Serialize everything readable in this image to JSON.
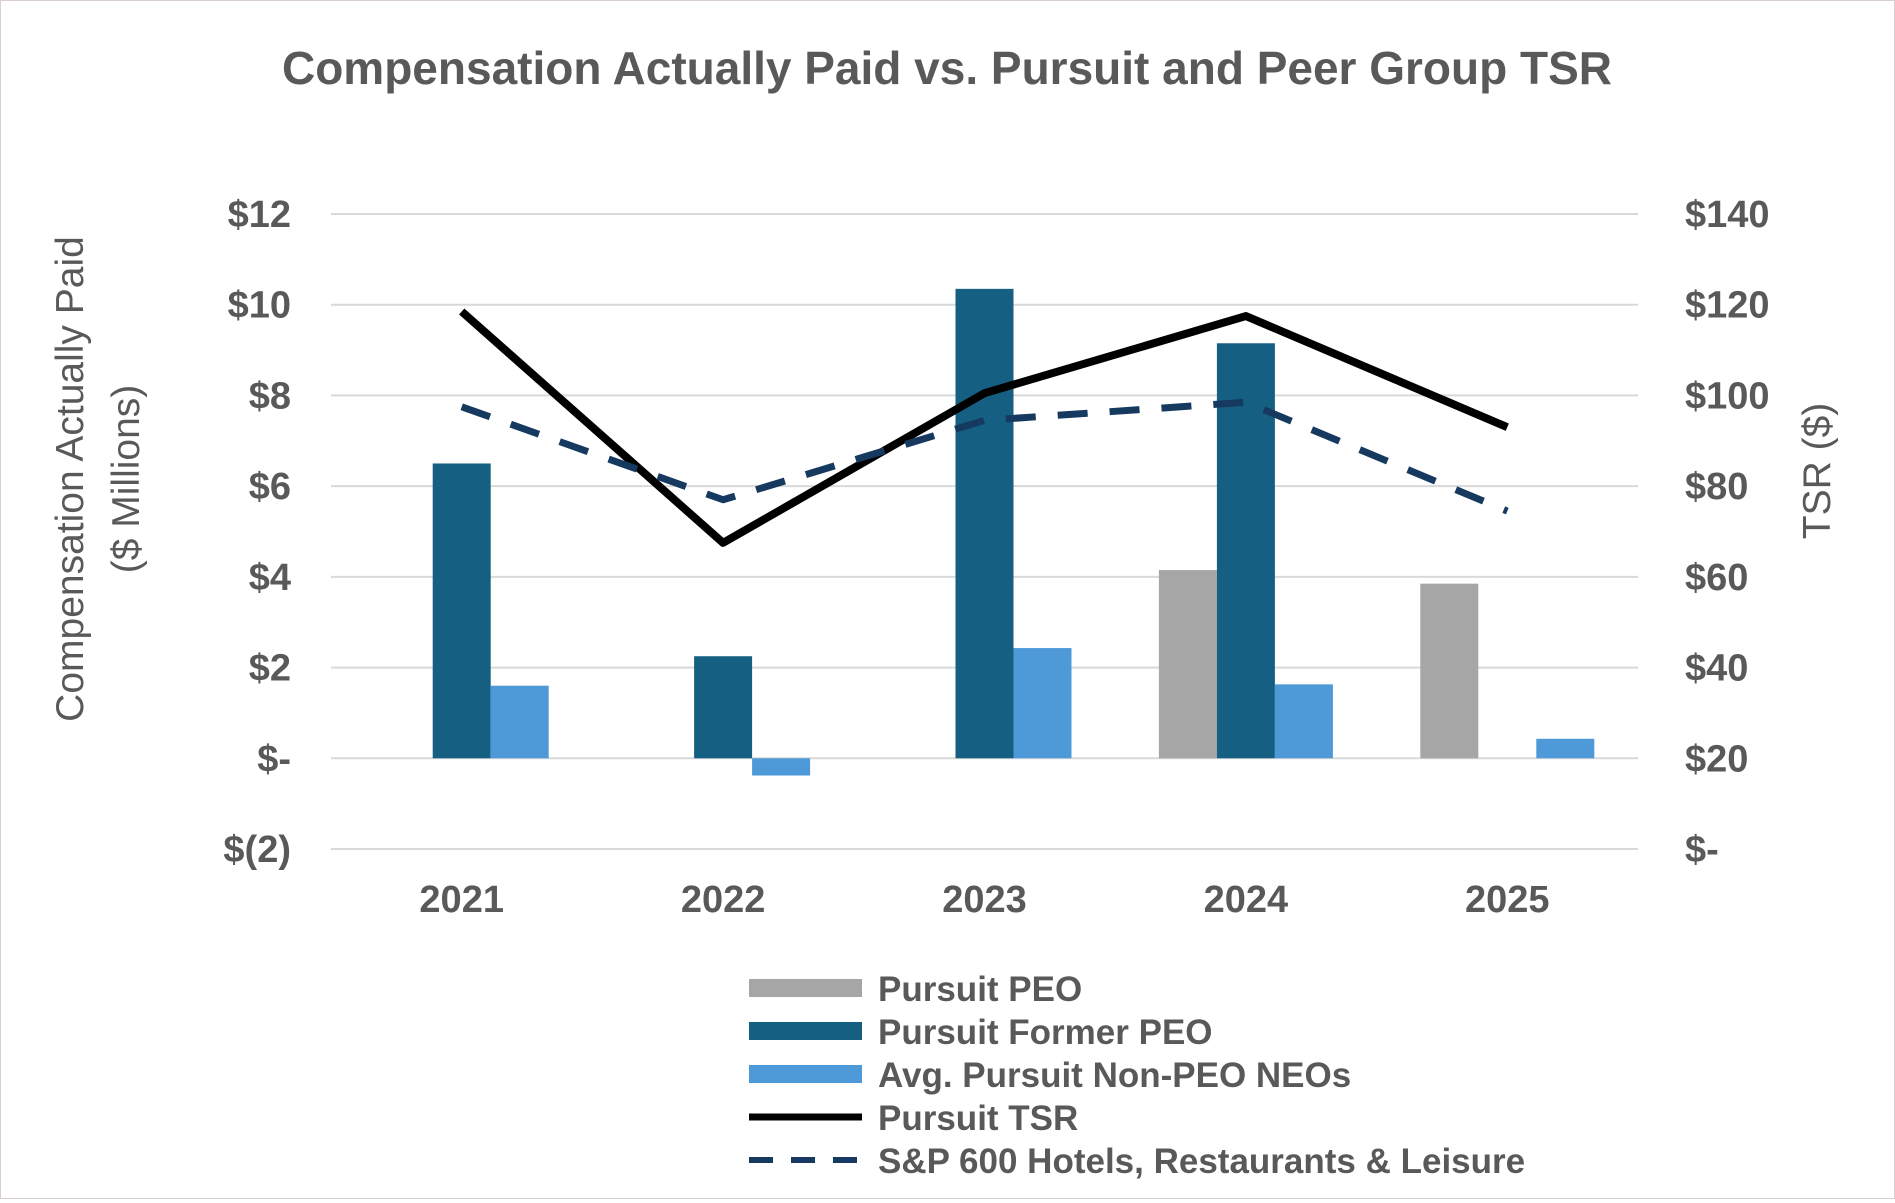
{
  "chart_data": {
    "type": "bar",
    "title": "Compensation Actually Paid vs. Pursuit and Peer Group TSR",
    "categories": [
      "2021",
      "2022",
      "2023",
      "2024",
      "2025"
    ],
    "y_left": {
      "label_line1": "Compensation Actually Paid",
      "label_line2": "($ Millions)",
      "ylim": [
        -2,
        12
      ],
      "ticks": [
        12,
        10,
        8,
        6,
        4,
        2,
        0,
        -2
      ],
      "tick_labels": [
        "$12",
        "$10",
        "$8",
        "$6",
        "$4",
        "$2",
        "$-",
        "$(2)"
      ]
    },
    "y_right": {
      "label": "TSR ($)",
      "ylim": [
        0,
        140
      ],
      "ticks": [
        140,
        120,
        100,
        80,
        60,
        40,
        20,
        0
      ],
      "tick_labels": [
        "$140",
        "$120",
        "$100",
        "$80",
        "$60",
        "$40",
        "$20",
        "$-"
      ]
    },
    "bar_series": [
      {
        "name": "Pursuit PEO",
        "color": "#a6a6a6",
        "values": [
          null,
          null,
          null,
          4.15,
          3.85
        ]
      },
      {
        "name": "Pursuit Former PEO",
        "color": "#156082",
        "values": [
          6.5,
          2.25,
          10.35,
          9.15,
          null
        ]
      },
      {
        "name": "Avg. Pursuit Non-PEO NEOs",
        "color": "#4e9ad9",
        "values": [
          1.6,
          -0.38,
          2.43,
          1.63,
          0.43
        ]
      }
    ],
    "line_series": [
      {
        "name": "Pursuit TSR",
        "color": "#000000",
        "style": "solid",
        "axis": "right",
        "values": [
          118.5,
          67.5,
          100.5,
          117.5,
          93.0
        ]
      },
      {
        "name": "S&P 600 Hotels, Restaurants & Leisure",
        "color": "#163a5f",
        "style": "dashed",
        "axis": "right",
        "values": [
          97.5,
          77.0,
          94.5,
          98.5,
          74.5
        ]
      }
    ],
    "legend": {
      "position": "bottom",
      "entries": [
        {
          "label": "Pursuit PEO",
          "kind": "bar",
          "color": "#a6a6a6"
        },
        {
          "label": "Pursuit Former PEO",
          "kind": "bar",
          "color": "#156082"
        },
        {
          "label": "Avg. Pursuit Non-PEO NEOs",
          "kind": "bar",
          "color": "#4e9ad9"
        },
        {
          "label": "Pursuit TSR",
          "kind": "line",
          "color": "#000000"
        },
        {
          "label": "S&P 600 Hotels, Restaurants & Leisure",
          "kind": "dashed",
          "color": "#163a5f"
        }
      ]
    },
    "grid": true
  }
}
